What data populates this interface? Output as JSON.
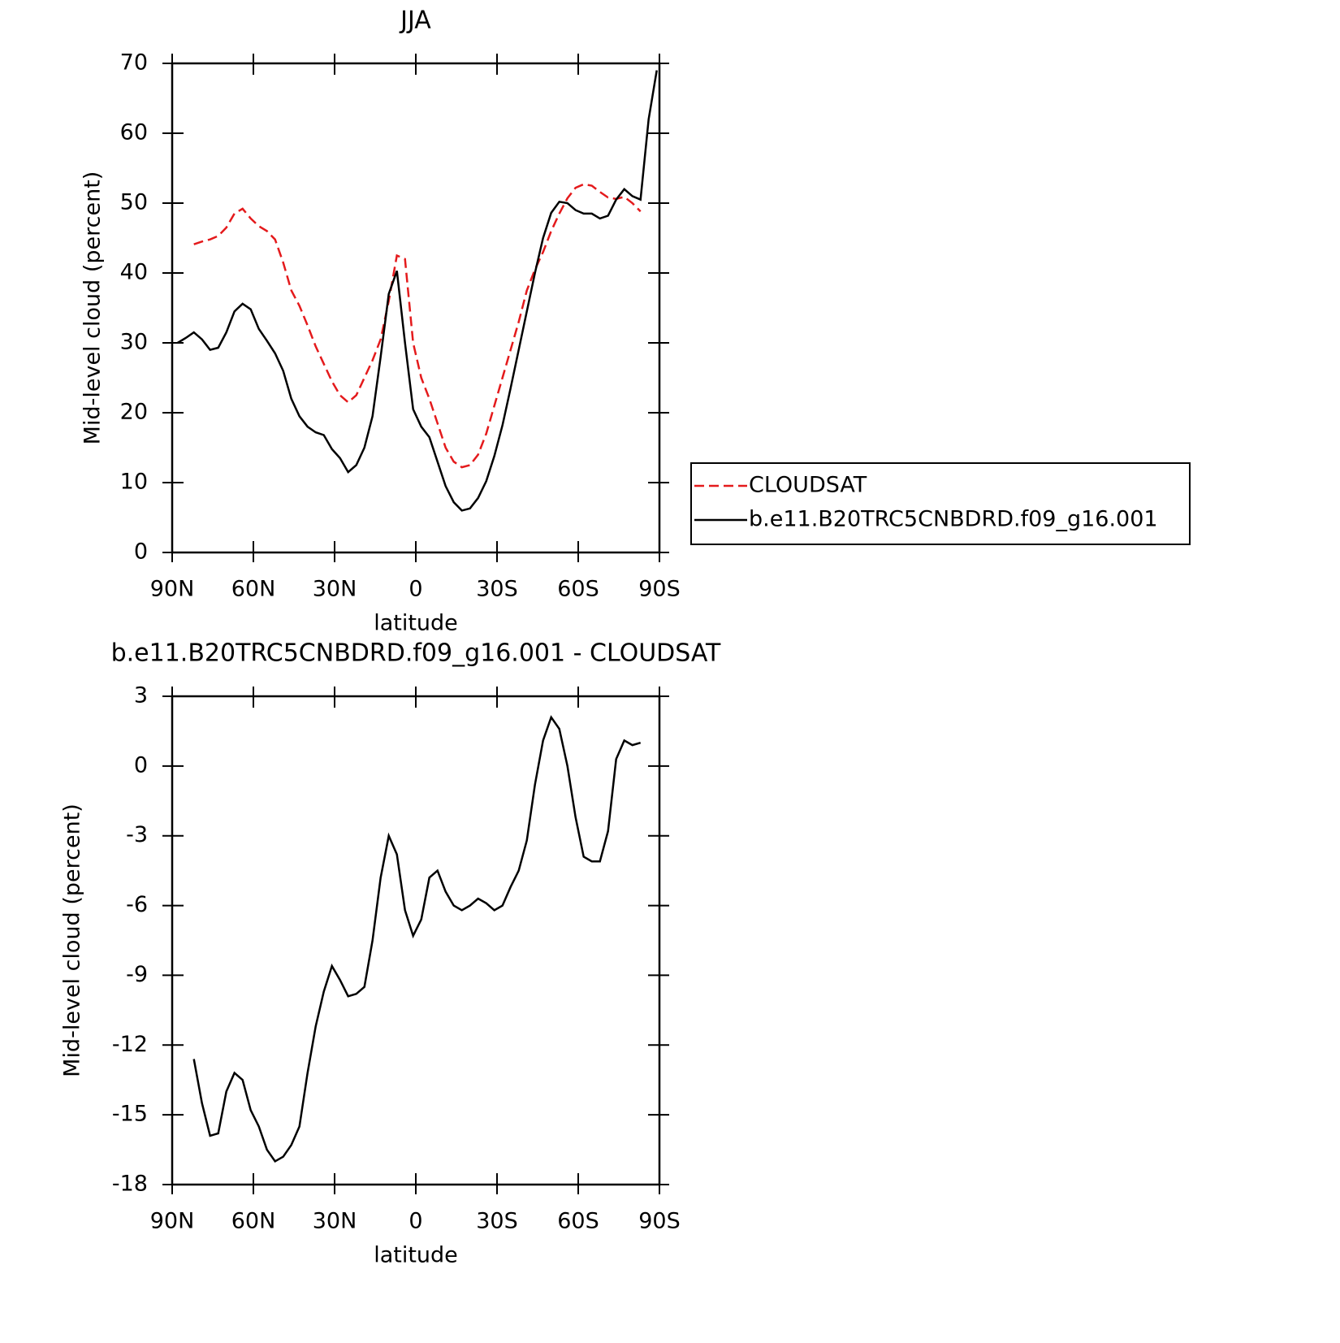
{
  "chart_data": [
    {
      "type": "line",
      "title": "JJA",
      "xlabel": "latitude",
      "ylabel": "Mid-level cloud (percent)",
      "x": [
        88,
        85,
        82,
        79,
        76,
        73,
        70,
        67,
        64,
        61,
        58,
        55,
        52,
        49,
        46,
        43,
        40,
        37,
        34,
        31,
        28,
        25,
        22,
        19,
        16,
        13,
        10,
        7,
        4,
        1,
        -2,
        -5,
        -8,
        -11,
        -14,
        -17,
        -20,
        -23,
        -26,
        -29,
        -32,
        -35,
        -38,
        -41,
        -44,
        -47,
        -50,
        -53,
        -56,
        -59,
        -62,
        -65,
        -68,
        -71,
        -74,
        -77,
        -80,
        -83,
        -86,
        -89
      ],
      "series": [
        {
          "name": "CLOUDSAT",
          "color": "#e41a1c",
          "dashed": true,
          "values": [
            null,
            null,
            44.1,
            44.5,
            44.8,
            45.3,
            46.5,
            48.5,
            49.2,
            47.8,
            46.7,
            46.0,
            44.8,
            41.5,
            37.5,
            35.3,
            32.5,
            29.5,
            27,
            24.5,
            22.5,
            21.5,
            22.5,
            25,
            27.5,
            30.5,
            36,
            42.5,
            42,
            30,
            25,
            22,
            18.5,
            15,
            13,
            12.2,
            12.5,
            14,
            17,
            21,
            25,
            29,
            33,
            37.5,
            40.5,
            43,
            46,
            48.5,
            50.7,
            52.2,
            52.7,
            52.5,
            51.6,
            50.8,
            50.6,
            50.9,
            50,
            48.8,
            null,
            null
          ]
        },
        {
          "name": "b.e11.B20TRC5CNBDRD.f09_g16.001",
          "color": "#000000",
          "dashed": false,
          "values": [
            30,
            30.7,
            31.5,
            30.5,
            29,
            29.3,
            31.5,
            34.5,
            35.6,
            34.8,
            32,
            30.3,
            28.5,
            26,
            22,
            19.5,
            18,
            17.2,
            16.8,
            14.8,
            13.5,
            11.5,
            12.5,
            15,
            19.5,
            28,
            37,
            40.3,
            30,
            20.5,
            18,
            16.5,
            13,
            9.5,
            7.2,
            6,
            6.3,
            7.8,
            10.2,
            13.8,
            18.2,
            23.5,
            29,
            34.5,
            40,
            45,
            48.6,
            50.2,
            50,
            49,
            48.5,
            48.5,
            47.8,
            48.2,
            50.5,
            52,
            51,
            50.5,
            62,
            69
          ]
        }
      ],
      "xlim": [
        90,
        -90
      ],
      "xticks": [
        {
          "value": 90,
          "label": "90N"
        },
        {
          "value": 60,
          "label": "60N"
        },
        {
          "value": 30,
          "label": "30N"
        },
        0,
        {
          "value": -30,
          "label": "30S"
        },
        {
          "value": -60,
          "label": "60S"
        },
        {
          "value": -90,
          "label": "90S"
        }
      ],
      "ylim": [
        0,
        70
      ],
      "yticks": [
        0,
        10,
        20,
        30,
        40,
        50,
        60,
        70
      ],
      "legend": "right"
    },
    {
      "type": "line",
      "title": "b.e11.B20TRC5CNBDRD.f09_g16.001 - CLOUDSAT",
      "xlabel": "latitude",
      "ylabel": "Mid-level cloud (percent)",
      "x": [
        82,
        79,
        76,
        73,
        70,
        67,
        64,
        61,
        58,
        55,
        52,
        49,
        46,
        43,
        40,
        37,
        34,
        31,
        28,
        25,
        22,
        19,
        16,
        13,
        10,
        7,
        4,
        1,
        -2,
        -5,
        -8,
        -11,
        -14,
        -17,
        -20,
        -23,
        -26,
        -29,
        -32,
        -35,
        -38,
        -41,
        -44,
        -47,
        -50,
        -53,
        -56,
        -59,
        -62,
        -65,
        -68,
        -71,
        -74,
        -77,
        -80,
        -83
      ],
      "values": [
        -12.6,
        -14.5,
        -15.9,
        -15.8,
        -14,
        -13.2,
        -13.5,
        -14.8,
        -15.5,
        -16.5,
        -17,
        -16.8,
        -16.3,
        -15.5,
        -13.2,
        -11.2,
        -9.7,
        -8.6,
        -9.2,
        -9.9,
        -9.8,
        -9.5,
        -7.5,
        -4.8,
        -3,
        -3.8,
        -6.2,
        -7.3,
        -6.6,
        -4.8,
        -4.5,
        -5.4,
        -6,
        -6.2,
        -6,
        -5.7,
        -5.9,
        -6.2,
        -6,
        -5.2,
        -4.5,
        -3.2,
        -0.8,
        1.1,
        2.1,
        1.6,
        0,
        -2.2,
        -3.9,
        -4.1,
        -4.1,
        -2.8,
        0.3,
        1.1,
        0.9,
        1
      ],
      "color": "#000000",
      "xlim": [
        90,
        -90
      ],
      "xticks": [
        {
          "value": 90,
          "label": "90N"
        },
        {
          "value": 60,
          "label": "60N"
        },
        {
          "value": 30,
          "label": "30N"
        },
        0,
        {
          "value": -30,
          "label": "30S"
        },
        {
          "value": -60,
          "label": "60S"
        },
        {
          "value": -90,
          "label": "90S"
        }
      ],
      "ylim": [
        -18,
        3
      ],
      "yticks": [
        -18,
        -15,
        -12,
        -9,
        -6,
        -3,
        0,
        3
      ]
    }
  ]
}
